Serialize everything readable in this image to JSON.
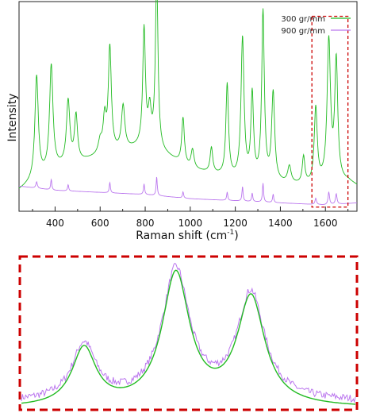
{
  "chart_data": [
    {
      "type": "line",
      "title": "",
      "xlabel": "Raman shift (cm",
      "xlabel_sup": "-1",
      "xlabel_end": ")",
      "ylabel": "Intensity",
      "xlim": [
        240,
        1740
      ],
      "ylim": [
        0,
        1
      ],
      "y_tick_labels": false,
      "grid": false,
      "legend_position": "top-right",
      "x_ticks": [
        {
          "value": 400,
          "label": "400"
        },
        {
          "value": 600,
          "label": "600"
        },
        {
          "value": 800,
          "label": "800"
        },
        {
          "value": 1000,
          "label": "1000"
        },
        {
          "value": 1200,
          "label": "1200"
        },
        {
          "value": 1400,
          "label": "1400"
        },
        {
          "value": 1600,
          "label": "1600"
        }
      ],
      "highlight_region": {
        "x": [
          1540,
          1700
        ],
        "y": [
          0.02,
          0.93
        ],
        "color": "#cc0000",
        "style": "dashed"
      },
      "series": [
        {
          "name": "300 gr/mm",
          "color": "#22bb22",
          "baseline": [
            [
              240,
              0.1
            ],
            [
              400,
              0.2
            ],
            [
              600,
              0.26
            ],
            [
              800,
              0.31
            ],
            [
              900,
              0.26
            ],
            [
              1000,
              0.2
            ],
            [
              1200,
              0.15
            ],
            [
              1400,
              0.13
            ],
            [
              1500,
              0.12
            ],
            [
              1540,
              0.12
            ],
            [
              1700,
              0.14
            ],
            [
              1740,
              0.12
            ]
          ],
          "peaks": [
            {
              "x": 318,
              "height": 0.49,
              "width": 9
            },
            {
              "x": 383,
              "height": 0.5,
              "width": 9
            },
            {
              "x": 458,
              "height": 0.3,
              "width": 9
            },
            {
              "x": 493,
              "height": 0.22,
              "width": 8
            },
            {
              "x": 600,
              "height": 0.06,
              "width": 10
            },
            {
              "x": 620,
              "height": 0.16,
              "width": 8
            },
            {
              "x": 643,
              "height": 0.5,
              "width": 8
            },
            {
              "x": 702,
              "height": 0.21,
              "width": 9
            },
            {
              "x": 795,
              "height": 0.55,
              "width": 7
            },
            {
              "x": 820,
              "height": 0.16,
              "width": 8
            },
            {
              "x": 851,
              "height": 0.82,
              "width": 7
            },
            {
              "x": 968,
              "height": 0.22,
              "width": 7
            },
            {
              "x": 1010,
              "height": 0.09,
              "width": 8
            },
            {
              "x": 1094,
              "height": 0.12,
              "width": 7
            },
            {
              "x": 1164,
              "height": 0.44,
              "width": 7
            },
            {
              "x": 1232,
              "height": 0.67,
              "width": 8
            },
            {
              "x": 1275,
              "height": 0.4,
              "width": 7
            },
            {
              "x": 1323,
              "height": 0.8,
              "width": 7
            },
            {
              "x": 1368,
              "height": 0.42,
              "width": 8
            },
            {
              "x": 1440,
              "height": 0.08,
              "width": 9
            },
            {
              "x": 1503,
              "height": 0.13,
              "width": 7
            },
            {
              "x": 1557,
              "height": 0.36,
              "width": 8
            },
            {
              "x": 1615,
              "height": 0.67,
              "width": 9
            },
            {
              "x": 1648,
              "height": 0.57,
              "width": 8
            }
          ]
        },
        {
          "name": "900 gr/mm",
          "color": "#bb77ee",
          "baseline": [
            [
              240,
              0.12
            ],
            [
              400,
              0.1
            ],
            [
              600,
              0.09
            ],
            [
              800,
              0.08
            ],
            [
              1000,
              0.06
            ],
            [
              1200,
              0.05
            ],
            [
              1400,
              0.04
            ],
            [
              1600,
              0.03
            ],
            [
              1740,
              0.04
            ]
          ],
          "peaks": [
            {
              "x": 318,
              "height": 0.03,
              "width": 4
            },
            {
              "x": 383,
              "height": 0.05,
              "width": 3
            },
            {
              "x": 458,
              "height": 0.03,
              "width": 3
            },
            {
              "x": 643,
              "height": 0.05,
              "width": 3
            },
            {
              "x": 795,
              "height": 0.05,
              "width": 3
            },
            {
              "x": 851,
              "height": 0.09,
              "width": 3
            },
            {
              "x": 968,
              "height": 0.03,
              "width": 3
            },
            {
              "x": 1164,
              "height": 0.04,
              "width": 3
            },
            {
              "x": 1232,
              "height": 0.07,
              "width": 3
            },
            {
              "x": 1275,
              "height": 0.04,
              "width": 3
            },
            {
              "x": 1323,
              "height": 0.09,
              "width": 3
            },
            {
              "x": 1368,
              "height": 0.04,
              "width": 3
            },
            {
              "x": 1557,
              "height": 0.03,
              "width": 4
            },
            {
              "x": 1615,
              "height": 0.06,
              "width": 4
            },
            {
              "x": 1648,
              "height": 0.05,
              "width": 4
            }
          ]
        }
      ]
    },
    {
      "type": "line",
      "title": "",
      "xlim": [
        1540,
        1700
      ],
      "ylim": [
        0,
        1
      ],
      "axes_visible": false,
      "frame": {
        "color": "#cc0000",
        "style": "dashed"
      },
      "series": [
        {
          "name": "",
          "color": "#22bb22",
          "baseline": 0.0,
          "peaks": [
            {
              "x": 1570,
              "height": 0.39,
              "width": 7
            },
            {
              "x": 1614,
              "height": 0.89,
              "width": 8
            },
            {
              "x": 1650,
              "height": 0.73,
              "width": 8
            }
          ]
        },
        {
          "name": "",
          "color": "#bb77ee",
          "baseline": 0.04,
          "noise": 0.025,
          "peaks": [
            {
              "x": 1570,
              "height": 0.38,
              "width": 7
            },
            {
              "x": 1614,
              "height": 0.88,
              "width": 8
            },
            {
              "x": 1650,
              "height": 0.72,
              "width": 8
            }
          ]
        }
      ]
    }
  ],
  "legend": {
    "items": [
      {
        "label": "300 gr/mm",
        "color": "#22bb22"
      },
      {
        "label": "900 gr/mm",
        "color": "#bb77ee"
      }
    ]
  }
}
